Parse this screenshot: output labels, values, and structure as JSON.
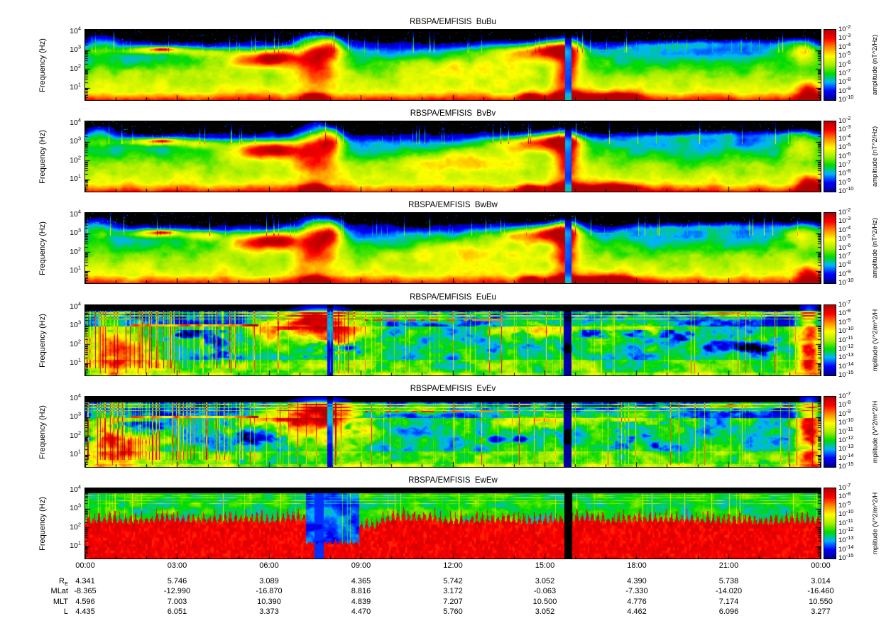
{
  "figure": {
    "background": "#ffffff",
    "axis_color": "#000000"
  },
  "chart_data": {
    "type": "heatmap",
    "subtype": "spectrogram-stack",
    "x_axis": {
      "ticks": [
        "00:00",
        "03:00",
        "06:00",
        "09:00",
        "12:00",
        "15:00",
        "18:00",
        "21:00",
        "00:00"
      ],
      "range_hours": [
        0,
        24
      ],
      "minor_tick_hours": 1
    },
    "y_axis": {
      "label": "Frequency (Hz)",
      "scale": "log",
      "tick_exponents": [
        4,
        3,
        2,
        1
      ],
      "range_hz": [
        2.2,
        13000
      ]
    },
    "colormap": [
      "#000090",
      "#0000ff",
      "#00b4ff",
      "#00dc00",
      "#aaee00",
      "#ffff00",
      "#ff8c00",
      "#ff0000",
      "#b40000"
    ],
    "panels": [
      {
        "title": "RBSPA/EMFISIS  BuBu",
        "style": "B",
        "colorbar_label": "amplitude (nT^2/Hz)",
        "colorbar_tick_exponents": [
          -2,
          -3,
          -4,
          -5,
          -6,
          -7,
          -8,
          -9,
          -10
        ]
      },
      {
        "title": "RBSPA/EMFISIS  BvBv",
        "style": "B",
        "colorbar_label": "amplitude (nT^2/Hz)",
        "colorbar_tick_exponents": [
          -2,
          -3,
          -4,
          -5,
          -6,
          -7,
          -8,
          -9,
          -10
        ]
      },
      {
        "title": "RBSPA/EMFISIS  BwBw",
        "style": "B",
        "colorbar_label": "amplitude (nT^2/Hz)",
        "colorbar_tick_exponents": [
          -2,
          -3,
          -4,
          -5,
          -6,
          -7,
          -8,
          -9,
          -10
        ]
      },
      {
        "title": "RBSPA/EMFISIS  EuEu",
        "style": "E",
        "colorbar_label": "mplitude (V^2/m^2/H",
        "colorbar_tick_exponents": [
          -7,
          -8,
          -9,
          -10,
          -11,
          -12,
          -13,
          -14,
          -15
        ]
      },
      {
        "title": "RBSPA/EMFISIS  EvEv",
        "style": "E",
        "colorbar_label": "mplitude (V^2/m^2/H",
        "colorbar_tick_exponents": [
          -7,
          -8,
          -9,
          -10,
          -11,
          -12,
          -13,
          -14,
          -15
        ]
      },
      {
        "title": "RBSPA/EMFISIS  EwEw",
        "style": "Ew",
        "colorbar_label": "mplitude (V^2/m^2/H",
        "colorbar_tick_exponents": [
          -7,
          -8,
          -9,
          -10,
          -11,
          -12,
          -13,
          -14,
          -15
        ]
      }
    ],
    "ephemeris": [
      {
        "label": "R",
        "label_sub": "E",
        "values": [
          "4.341",
          "5.746",
          "3.089",
          "4.365",
          "5.742",
          "3.052",
          "4.390",
          "5.738",
          "3.014"
        ]
      },
      {
        "label": "MLat",
        "label_sub": "",
        "values": [
          "-8.365",
          "-12.990",
          "-16.870",
          "8.816",
          "3.172",
          "-0.063",
          "-7.330",
          "-14.020",
          "-16.460"
        ]
      },
      {
        "label": "MLT",
        "label_sub": "",
        "values": [
          "4.596",
          "7.003",
          "10.390",
          "4.839",
          "7.207",
          "10.500",
          "4.776",
          "7.174",
          "10.550"
        ]
      },
      {
        "label": "L",
        "label_sub": "",
        "values": [
          "4.435",
          "6.051",
          "3.373",
          "4.470",
          "5.760",
          "3.052",
          "4.462",
          "6.096",
          "3.277"
        ]
      }
    ]
  }
}
